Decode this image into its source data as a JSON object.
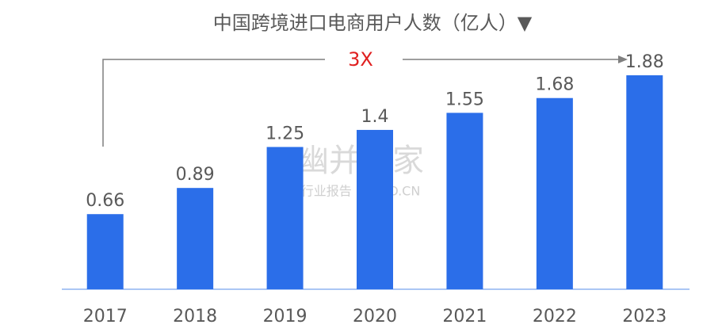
{
  "chart_data": {
    "type": "bar",
    "title": "中国跨境进口电商用户人数（亿人）▼",
    "categories": [
      "2017",
      "2018",
      "2019",
      "2020",
      "2021",
      "2022",
      "2023"
    ],
    "values": [
      0.66,
      0.89,
      1.25,
      1.4,
      1.55,
      1.68,
      1.88
    ],
    "color": "#2b6ee9",
    "annotation": "3X",
    "watermark": {
      "title": "幽并购家",
      "subtitle": "行业报告 IPOIPO.CN"
    }
  }
}
